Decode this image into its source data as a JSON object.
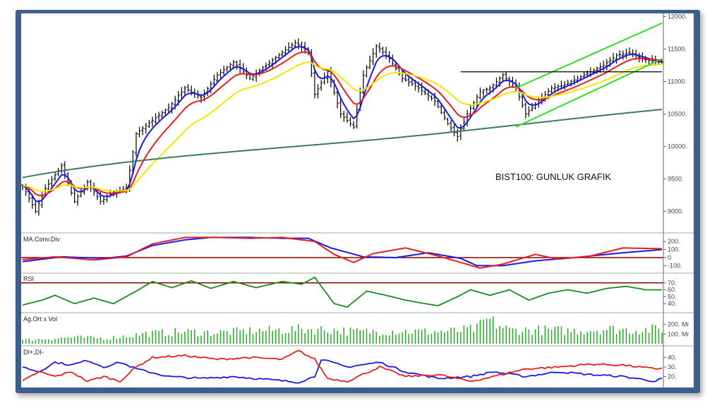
{
  "colors": {
    "frame": "#3e5f8e",
    "price_bars": "#000000",
    "ma_blue": "#1a1ae6",
    "ma_red": "#e61e1e",
    "ma_yellow": "#f2e600",
    "ma_teal": "#3c7a6a",
    "channel": "#33dd22",
    "macd_line": "#1a1ae6",
    "macd_signal": "#e61e1e",
    "zero_line": "#8b0000",
    "rsi_line": "#1a8c1a",
    "rsi_ref": "#8b0000",
    "volume_bars": "#22aa22",
    "di_plus": "#1a1ae6",
    "di_minus": "#e61e1e"
  },
  "chart_data": [
    {
      "type": "line",
      "title": "BIST100: GUNLUK GRAFIK",
      "pane": "price",
      "ylim": [
        8700,
        12050
      ],
      "y_ticks": [
        "12000.",
        "11500.",
        "11000.",
        "10500.",
        "10000.",
        "9500.",
        "9000."
      ],
      "y_tick_values": [
        12000,
        11500,
        11000,
        10500,
        10000,
        9500,
        9000
      ],
      "price_keypoints": [
        [
          0,
          9400
        ],
        [
          4,
          9000
        ],
        [
          7,
          9350
        ],
        [
          12,
          9700
        ],
        [
          16,
          9150
        ],
        [
          20,
          9450
        ],
        [
          24,
          9150
        ],
        [
          28,
          9300
        ],
        [
          32,
          9350
        ],
        [
          35,
          10200
        ],
        [
          40,
          10400
        ],
        [
          45,
          10600
        ],
        [
          50,
          10900
        ],
        [
          55,
          10750
        ],
        [
          60,
          11100
        ],
        [
          65,
          11300
        ],
        [
          70,
          11050
        ],
        [
          75,
          11250
        ],
        [
          80,
          11450
        ],
        [
          84,
          11600
        ],
        [
          88,
          11450
        ],
        [
          90,
          10800
        ],
        [
          94,
          11150
        ],
        [
          98,
          10500
        ],
        [
          102,
          10300
        ],
        [
          105,
          11100
        ],
        [
          109,
          11550
        ],
        [
          113,
          11350
        ],
        [
          117,
          11050
        ],
        [
          122,
          10900
        ],
        [
          127,
          10700
        ],
        [
          131,
          10350
        ],
        [
          134,
          10150
        ],
        [
          137,
          10500
        ],
        [
          141,
          10850
        ],
        [
          144,
          10900
        ],
        [
          148,
          11100
        ],
        [
          152,
          10900
        ],
        [
          155,
          10500
        ],
        [
          159,
          10700
        ],
        [
          163,
          10900
        ],
        [
          167,
          10950
        ],
        [
          171,
          11050
        ],
        [
          175,
          11150
        ],
        [
          179,
          11250
        ],
        [
          183,
          11400
        ],
        [
          187,
          11450
        ],
        [
          191,
          11350
        ],
        [
          195,
          11300
        ],
        [
          197,
          11300
        ]
      ],
      "moving_averages": [
        {
          "name": "",
          "color_key": "ma_blue",
          "period": 5
        },
        {
          "name": "",
          "color_key": "ma_red",
          "period": 12
        },
        {
          "name": "",
          "color_key": "ma_yellow",
          "period": 26
        },
        {
          "name": "",
          "color_key": "ma_teal",
          "period": 90
        }
      ],
      "channel_lines": [
        {
          "from": [
            152,
            10300
          ],
          "to": [
            197,
            11350
          ]
        },
        {
          "from": [
            152,
            10900
          ],
          "to": [
            197,
            11900
          ]
        }
      ],
      "horizontal_lines": [
        {
          "from_bar": 135,
          "to_bar": 197,
          "value": 11150
        }
      ]
    },
    {
      "type": "line",
      "title": "MA.Conv.Div",
      "pane": "macd",
      "ylim": [
        -175,
        280
      ],
      "y_ticks": [
        "200.",
        "100.",
        "0",
        "-100."
      ],
      "y_tick_values": [
        200,
        100,
        0,
        -100
      ],
      "series": [
        {
          "name": "",
          "color_key": "macd_line",
          "points": [
            [
              0,
              -50
            ],
            [
              12,
              10
            ],
            [
              25,
              -10
            ],
            [
              32,
              20
            ],
            [
              40,
              150
            ],
            [
              50,
              220
            ],
            [
              58,
              250
            ],
            [
              70,
              250
            ],
            [
              80,
              240
            ],
            [
              88,
              240
            ],
            [
              95,
              120
            ],
            [
              105,
              10
            ],
            [
              115,
              0
            ],
            [
              125,
              60
            ],
            [
              135,
              -10
            ],
            [
              140,
              -100
            ],
            [
              148,
              -100
            ],
            [
              158,
              -40
            ],
            [
              170,
              0
            ],
            [
              185,
              60
            ],
            [
              197,
              100
            ]
          ]
        },
        {
          "name": "",
          "color_key": "macd_signal",
          "points": [
            [
              0,
              -25
            ],
            [
              10,
              10
            ],
            [
              22,
              -30
            ],
            [
              32,
              10
            ],
            [
              40,
              170
            ],
            [
              50,
              250
            ],
            [
              60,
              250
            ],
            [
              70,
              240
            ],
            [
              80,
              250
            ],
            [
              90,
              200
            ],
            [
              96,
              40
            ],
            [
              102,
              -60
            ],
            [
              108,
              50
            ],
            [
              118,
              120
            ],
            [
              128,
              20
            ],
            [
              135,
              -60
            ],
            [
              141,
              -130
            ],
            [
              148,
              -80
            ],
            [
              158,
              40
            ],
            [
              165,
              -20
            ],
            [
              175,
              20
            ],
            [
              185,
              120
            ],
            [
              197,
              110
            ]
          ]
        }
      ],
      "zero_line": 0
    },
    {
      "type": "line",
      "title": "RSI",
      "pane": "rsi",
      "ylim": [
        30,
        82
      ],
      "y_ticks": [
        "70.",
        "60.",
        "50.",
        "40."
      ],
      "y_tick_values": [
        70,
        60,
        50,
        40
      ],
      "reference_line": 70,
      "series": [
        {
          "name": "",
          "color_key": "rsi_line",
          "points": [
            [
              0,
              38
            ],
            [
              6,
              45
            ],
            [
              10,
              52
            ],
            [
              16,
              40
            ],
            [
              22,
              48
            ],
            [
              28,
              40
            ],
            [
              35,
              58
            ],
            [
              40,
              72
            ],
            [
              46,
              63
            ],
            [
              52,
              73
            ],
            [
              58,
              62
            ],
            [
              65,
              72
            ],
            [
              72,
              63
            ],
            [
              80,
              72
            ],
            [
              86,
              68
            ],
            [
              90,
              78
            ],
            [
              96,
              40
            ],
            [
              100,
              35
            ],
            [
              106,
              58
            ],
            [
              112,
              52
            ],
            [
              118,
              45
            ],
            [
              124,
              40
            ],
            [
              128,
              37
            ],
            [
              134,
              50
            ],
            [
              138,
              60
            ],
            [
              144,
              52
            ],
            [
              150,
              60
            ],
            [
              156,
              45
            ],
            [
              162,
              55
            ],
            [
              168,
              60
            ],
            [
              174,
              55
            ],
            [
              180,
              62
            ],
            [
              186,
              65
            ],
            [
              192,
              60
            ],
            [
              197,
              60
            ]
          ]
        }
      ]
    },
    {
      "type": "bar",
      "title": "Ag.Ort x Vol",
      "pane": "volume",
      "ylim": [
        0,
        300
      ],
      "y_ticks": [
        "200. Mr",
        "100. Mr"
      ],
      "y_tick_values": [
        200,
        100
      ],
      "volume_keypoints": [
        [
          0,
          40
        ],
        [
          15,
          70
        ],
        [
          26,
          60
        ],
        [
          38,
          110
        ],
        [
          50,
          130
        ],
        [
          60,
          120
        ],
        [
          70,
          140
        ],
        [
          80,
          150
        ],
        [
          88,
          160
        ],
        [
          96,
          150
        ],
        [
          104,
          130
        ],
        [
          115,
          140
        ],
        [
          125,
          130
        ],
        [
          134,
          140
        ],
        [
          140,
          165
        ],
        [
          143,
          260
        ],
        [
          150,
          150
        ],
        [
          160,
          150
        ],
        [
          170,
          140
        ],
        [
          180,
          160
        ],
        [
          190,
          150
        ],
        [
          197,
          160
        ]
      ]
    },
    {
      "type": "line",
      "title": "DI+,DI-",
      "pane": "dmi",
      "ylim": [
        10,
        50
      ],
      "y_ticks": [
        "40.",
        "30.",
        "20."
      ],
      "y_tick_values": [
        40,
        30,
        20
      ],
      "series": [
        {
          "name": "",
          "color_key": "di_plus",
          "points": [
            [
              0,
              30
            ],
            [
              5,
              25
            ],
            [
              10,
              35
            ],
            [
              15,
              32
            ],
            [
              20,
              37
            ],
            [
              25,
              30
            ],
            [
              30,
              35
            ],
            [
              35,
              28
            ],
            [
              45,
              20
            ],
            [
              55,
              18
            ],
            [
              65,
              20
            ],
            [
              75,
              17
            ],
            [
              85,
              14
            ],
            [
              90,
              20
            ],
            [
              92,
              38
            ],
            [
              100,
              30
            ],
            [
              110,
              35
            ],
            [
              118,
              25
            ],
            [
              128,
              18
            ],
            [
              138,
              20
            ],
            [
              145,
              25
            ],
            [
              155,
              20
            ],
            [
              165,
              25
            ],
            [
              175,
              22
            ],
            [
              185,
              20
            ],
            [
              195,
              15
            ],
            [
              197,
              18
            ]
          ]
        },
        {
          "name": "",
          "color_key": "di_minus",
          "points": [
            [
              0,
              15
            ],
            [
              5,
              25
            ],
            [
              10,
              20
            ],
            [
              15,
              25
            ],
            [
              20,
              15
            ],
            [
              25,
              20
            ],
            [
              30,
              15
            ],
            [
              35,
              30
            ],
            [
              40,
              40
            ],
            [
              50,
              42
            ],
            [
              60,
              38
            ],
            [
              70,
              40
            ],
            [
              80,
              38
            ],
            [
              85,
              47
            ],
            [
              90,
              38
            ],
            [
              94,
              18
            ],
            [
              100,
              15
            ],
            [
              110,
              30
            ],
            [
              118,
              20
            ],
            [
              128,
              22
            ],
            [
              138,
              15
            ],
            [
              145,
              20
            ],
            [
              155,
              28
            ],
            [
              165,
              30
            ],
            [
              175,
              33
            ],
            [
              185,
              32
            ],
            [
              195,
              28
            ],
            [
              197,
              29
            ]
          ]
        }
      ]
    }
  ]
}
